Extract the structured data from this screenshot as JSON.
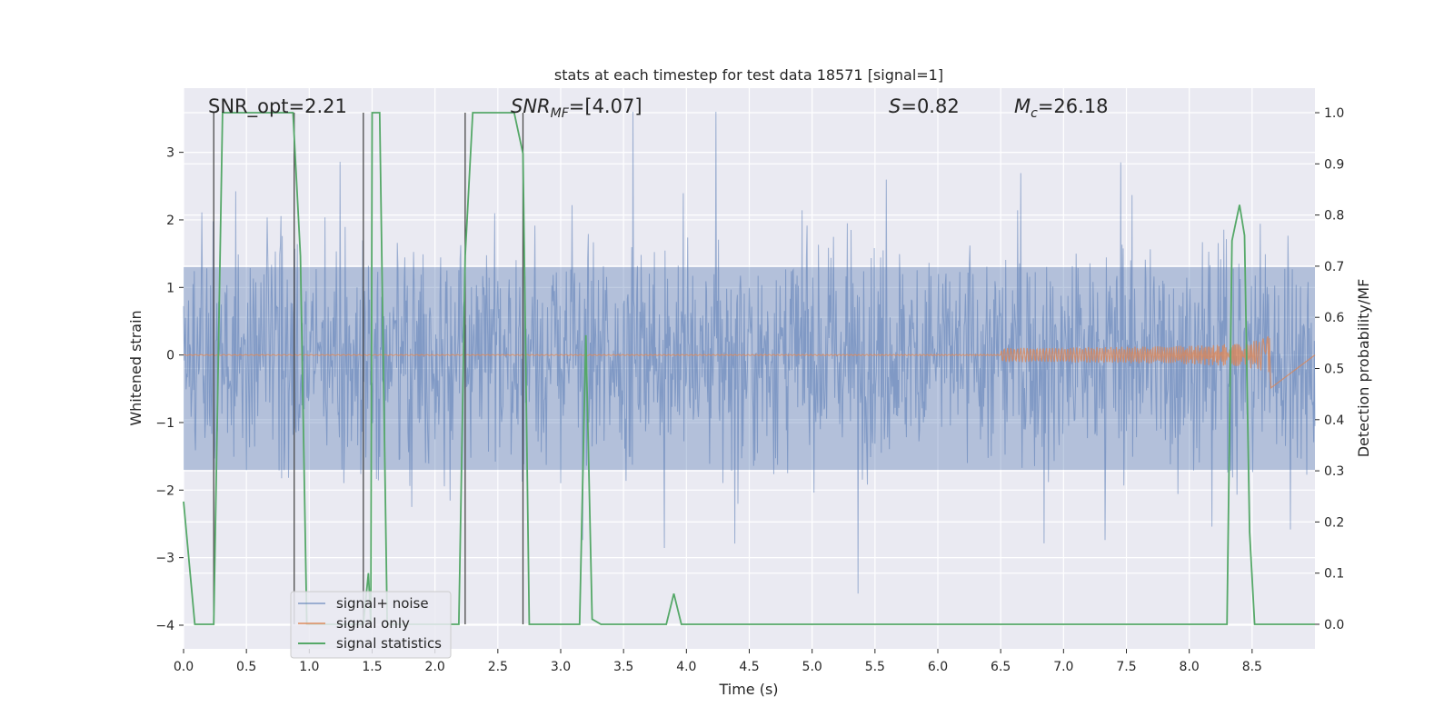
{
  "chart_data": {
    "type": "line",
    "title": "stats at each timestep for test data 18571 [signal=1]",
    "xlabel": "Time (s)",
    "ylabel": "Whitened strain",
    "y2label": "Detection probability/MF",
    "xlim": [
      0.0,
      9.0
    ],
    "ylim": [
      -4.35,
      3.95
    ],
    "y2lim": [
      -0.048,
      1.048
    ],
    "xticks": [
      0.0,
      0.5,
      1.0,
      1.5,
      2.0,
      2.5,
      3.0,
      3.5,
      4.0,
      4.5,
      5.0,
      5.5,
      6.0,
      6.5,
      7.0,
      7.5,
      8.0,
      8.5
    ],
    "xtick_labels": [
      "0.0",
      "0.5",
      "1.0",
      "1.5",
      "2.0",
      "2.5",
      "3.0",
      "3.5",
      "4.0",
      "4.5",
      "5.0",
      "5.5",
      "6.0",
      "6.5",
      "7.0",
      "7.5",
      "8.0",
      "8.5"
    ],
    "yticks": [
      -4,
      -3,
      -2,
      -1,
      0,
      1,
      2,
      3
    ],
    "ytick_labels": [
      "−4",
      "−3",
      "−2",
      "−1",
      "0",
      "1",
      "2",
      "3"
    ],
    "y2ticks": [
      0.0,
      0.1,
      0.2,
      0.3,
      0.4,
      0.5,
      0.6,
      0.7,
      0.8,
      0.9,
      1.0
    ],
    "y2tick_labels": [
      "0.0",
      "0.1",
      "0.2",
      "0.3",
      "0.4",
      "0.5",
      "0.6",
      "0.7",
      "0.8",
      "0.9",
      "1.0"
    ],
    "grid": true,
    "legend_position": "bottom-left",
    "annotations": {
      "snr_opt": "SNR_opt=2.21",
      "snr_mf_main": "SNR",
      "snr_mf_sub": "MF",
      "snr_mf_rest": "=[4.07]",
      "s_main": "S",
      "s_rest": "=0.82",
      "mc_main": "M",
      "mc_sub": "c",
      "mc_rest": "=26.18"
    },
    "colors": {
      "background": "#eaeaf2",
      "grid": "#ffffff",
      "noise": "#4c72b0",
      "signal": "#dd8452",
      "stats": "#55a868",
      "markers": "#4a4a4a"
    },
    "series": [
      {
        "name": "signal+ noise",
        "axis": "left",
        "style": "dense noise band, envelope about ±1.3 with spikes to ±3.6"
      },
      {
        "name": "signal only",
        "axis": "left",
        "style": "flat near 0, chirp growing to about ±0.5 ending at 8.65 s"
      },
      {
        "name": "signal statistics",
        "axis": "right",
        "x": [
          0.0,
          0.09,
          0.24,
          0.31,
          0.87,
          0.93,
          0.98,
          1.43,
          1.47,
          1.49,
          1.5,
          1.56,
          1.62,
          2.19,
          2.24,
          2.3,
          2.4,
          2.63,
          2.7,
          2.75,
          3.15,
          3.2,
          3.25,
          3.32,
          3.84,
          3.9,
          3.96,
          8.3,
          8.34,
          8.4,
          8.44,
          8.48,
          8.52,
          8.62,
          8.65,
          8.7,
          9.0
        ],
        "values": [
          0.24,
          0.0,
          0.0,
          1.0,
          1.0,
          0.72,
          0.0,
          0.0,
          0.1,
          0.0,
          1.0,
          1.0,
          0.0,
          0.0,
          0.72,
          1.0,
          1.0,
          1.0,
          0.92,
          0.0,
          0.0,
          0.565,
          0.01,
          0.0,
          0.0,
          0.06,
          0.0,
          0.0,
          0.75,
          0.82,
          0.76,
          0.18,
          0.0,
          0.0,
          0.0,
          0.0,
          0.0
        ]
      }
    ],
    "event_markers_x": [
      0.24,
      0.88,
      1.43,
      2.24,
      2.7
    ]
  }
}
